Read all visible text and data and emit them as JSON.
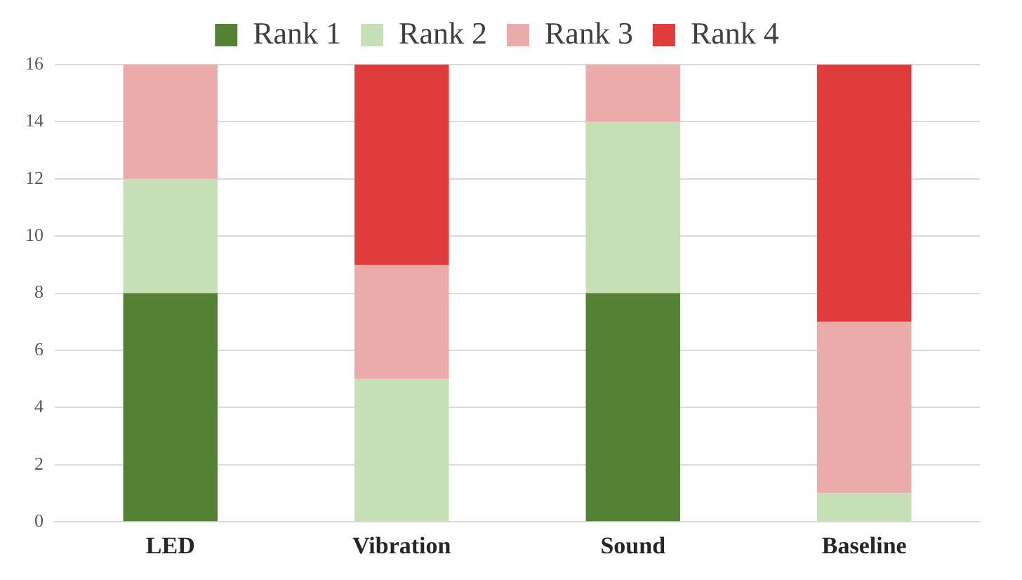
{
  "chart_data": {
    "type": "bar",
    "stacked": true,
    "categories": [
      "LED",
      "Vibration",
      "Sound",
      "Baseline"
    ],
    "series": [
      {
        "name": "Rank 1",
        "color": "#548235",
        "values": [
          8,
          0,
          8,
          0
        ]
      },
      {
        "name": "Rank 2",
        "color": "#c5e0b4",
        "values": [
          4,
          5,
          6,
          1
        ]
      },
      {
        "name": "Rank 3",
        "color": "#ecabab",
        "values": [
          4,
          4,
          2,
          6
        ]
      },
      {
        "name": "Rank 4",
        "color": "#e03c3c",
        "values": [
          0,
          7,
          0,
          9
        ]
      }
    ],
    "ylim": [
      0,
      16
    ],
    "yticks": [
      0,
      2,
      4,
      6,
      8,
      10,
      12,
      14,
      16
    ],
    "grid": "y",
    "legend": "top"
  }
}
